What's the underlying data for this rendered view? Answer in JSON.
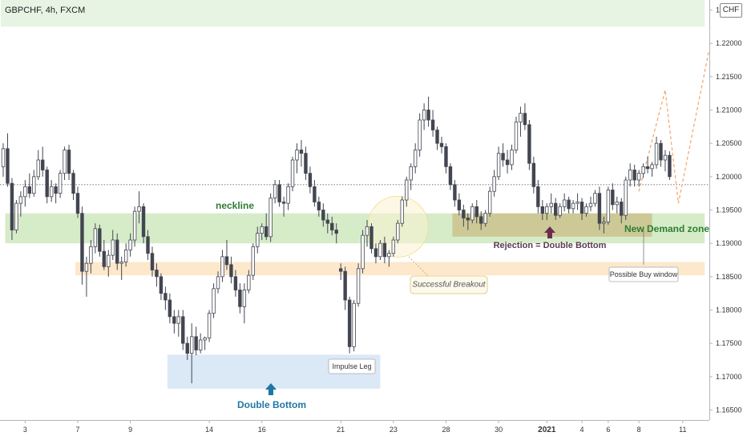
{
  "header": {
    "symbol": "GBPCHF, 4h, FXCM",
    "currency_button": "CHF"
  },
  "colors": {
    "up_candle": "#ffffff",
    "down_candle": "#434651",
    "wick": "#434651",
    "neckline_zone": "#d6ecc9",
    "top_zone": "#e7f3e3",
    "support_zone": "#fde8cc",
    "demand_zone": "#cbc38e",
    "double_bottom_zone": "#dbe8f6",
    "arrow_blue": "#1f77a6",
    "arrow_purple": "#6b2d4e",
    "neckline_text": "#2e7d32",
    "demand_text": "#2e7d32"
  },
  "chart_data": {
    "type": "candlestick",
    "ylim": [
      1.1635,
      1.2265
    ],
    "y_ticks": [
      "1.16500",
      "1.17000",
      "1.17500",
      "1.18000",
      "1.18500",
      "1.19000",
      "1.19500",
      "1.20000",
      "1.20500",
      "1.21000",
      "1.21500",
      "1.22000",
      "1.22500"
    ],
    "x_ticks": [
      {
        "label": "3",
        "bar": 5
      },
      {
        "label": "7",
        "bar": 17
      },
      {
        "label": "9",
        "bar": 29
      },
      {
        "label": "14",
        "bar": 47
      },
      {
        "label": "16",
        "bar": 59
      },
      {
        "label": "21",
        "bar": 77
      },
      {
        "label": "23",
        "bar": 89
      },
      {
        "label": "28",
        "bar": 101
      },
      {
        "label": "30",
        "bar": 113
      },
      {
        "label": "2021",
        "bar": 124
      },
      {
        "label": "4",
        "bar": 132
      },
      {
        "label": "6",
        "bar": 138
      },
      {
        "label": "8",
        "bar": 145
      },
      {
        "label": "11",
        "bar": 155
      }
    ],
    "reference_level": 1.1988,
    "zones": [
      {
        "name": "top-zone",
        "y": [
          1.2225,
          1.2265
        ],
        "bars": [
          0,
          160
        ]
      },
      {
        "name": "neckline-zone",
        "y": [
          1.19,
          1.1945
        ],
        "bars": [
          1,
          160
        ]
      },
      {
        "name": "support-zone",
        "y": [
          1.1852,
          1.1872
        ],
        "bars": [
          17,
          160
        ]
      },
      {
        "name": "demand-zone",
        "y": [
          1.191,
          1.1945
        ],
        "bars": [
          103,
          148
        ]
      },
      {
        "name": "double-bottom-zone",
        "y": [
          1.1682,
          1.1733
        ],
        "bars": [
          38,
          86
        ]
      }
    ],
    "candles": [
      [
        1.2015,
        1.205,
        1.2,
        1.2042
      ],
      [
        1.2042,
        1.2065,
        1.1985,
        1.199
      ],
      [
        1.199,
        1.1998,
        1.1905,
        1.192
      ],
      [
        1.192,
        1.1965,
        1.1915,
        1.196
      ],
      [
        1.196,
        1.1978,
        1.194,
        1.197
      ],
      [
        1.197,
        1.1995,
        1.1955,
        1.1985
      ],
      [
        1.1985,
        1.2005,
        1.1968,
        1.1975
      ],
      [
        1.1975,
        1.201,
        1.197,
        1.2
      ],
      [
        1.2,
        1.204,
        1.1995,
        1.2025
      ],
      [
        1.2025,
        1.2045,
        1.2,
        1.201
      ],
      [
        1.201,
        1.2015,
        1.196,
        1.197
      ],
      [
        1.197,
        1.1995,
        1.1962,
        1.1985
      ],
      [
        1.1985,
        1.199,
        1.196,
        1.1975
      ],
      [
        1.1975,
        1.201,
        1.1968,
        1.2005
      ],
      [
        1.2005,
        1.2045,
        1.1995,
        1.204
      ],
      [
        1.204,
        1.2048,
        1.1995,
        1.2005
      ],
      [
        1.2005,
        1.201,
        1.1965,
        1.1975
      ],
      [
        1.1975,
        1.1985,
        1.1938,
        1.1945
      ],
      [
        1.1945,
        1.1955,
        1.1838,
        1.1858
      ],
      [
        1.1858,
        1.188,
        1.182,
        1.187
      ],
      [
        1.187,
        1.1905,
        1.1855,
        1.1895
      ],
      [
        1.1895,
        1.193,
        1.1885,
        1.1922
      ],
      [
        1.1922,
        1.1928,
        1.188,
        1.1888
      ],
      [
        1.1888,
        1.1905,
        1.186,
        1.1865
      ],
      [
        1.1865,
        1.189,
        1.185,
        1.1882
      ],
      [
        1.1882,
        1.192,
        1.1875,
        1.1905
      ],
      [
        1.1905,
        1.1915,
        1.186,
        1.187
      ],
      [
        1.187,
        1.188,
        1.1845,
        1.1872
      ],
      [
        1.1872,
        1.19,
        1.1865,
        1.189
      ],
      [
        1.189,
        1.1915,
        1.188,
        1.1905
      ],
      [
        1.1905,
        1.1955,
        1.1895,
        1.1948
      ],
      [
        1.1948,
        1.1978,
        1.193,
        1.1955
      ],
      [
        1.1955,
        1.196,
        1.19,
        1.191
      ],
      [
        1.191,
        1.192,
        1.1875,
        1.1885
      ],
      [
        1.1885,
        1.1895,
        1.185,
        1.186
      ],
      [
        1.186,
        1.187,
        1.1835,
        1.185
      ],
      [
        1.185,
        1.1855,
        1.1815,
        1.1825
      ],
      [
        1.1825,
        1.1835,
        1.18,
        1.1815
      ],
      [
        1.1815,
        1.1825,
        1.178,
        1.179
      ],
      [
        1.179,
        1.18,
        1.1765,
        1.178
      ],
      [
        1.178,
        1.18,
        1.176,
        1.179
      ],
      [
        1.179,
        1.18,
        1.174,
        1.175
      ],
      [
        1.175,
        1.176,
        1.1725,
        1.1735
      ],
      [
        1.1735,
        1.178,
        1.169,
        1.176
      ],
      [
        1.176,
        1.1775,
        1.1732,
        1.174
      ],
      [
        1.174,
        1.1765,
        1.1735,
        1.1755
      ],
      [
        1.1755,
        1.176,
        1.174,
        1.1758
      ],
      [
        1.1758,
        1.18,
        1.1752,
        1.1795
      ],
      [
        1.1795,
        1.184,
        1.1788,
        1.1832
      ],
      [
        1.1832,
        1.1858,
        1.1825,
        1.185
      ],
      [
        1.185,
        1.189,
        1.1842,
        1.188
      ],
      [
        1.188,
        1.1905,
        1.186,
        1.1868
      ],
      [
        1.1868,
        1.188,
        1.184,
        1.185
      ],
      [
        1.185,
        1.186,
        1.182,
        1.183
      ],
      [
        1.183,
        1.184,
        1.1795,
        1.1805
      ],
      [
        1.1805,
        1.184,
        1.178,
        1.183
      ],
      [
        1.183,
        1.186,
        1.1825,
        1.1852
      ],
      [
        1.1852,
        1.19,
        1.1845,
        1.1895
      ],
      [
        1.1895,
        1.1925,
        1.1885,
        1.1915
      ],
      [
        1.1915,
        1.193,
        1.1905,
        1.1925
      ],
      [
        1.1925,
        1.1945,
        1.1905,
        1.191
      ],
      [
        1.191,
        1.1975,
        1.1902,
        1.1968
      ],
      [
        1.1968,
        1.1995,
        1.196,
        1.1988
      ],
      [
        1.1988,
        1.1995,
        1.1955,
        1.1962
      ],
      [
        1.1962,
        1.197,
        1.194,
        1.196
      ],
      [
        1.196,
        1.199,
        1.195,
        1.1985
      ],
      [
        1.1985,
        1.203,
        1.1978,
        1.2025
      ],
      [
        1.2025,
        1.205,
        1.2005,
        1.204
      ],
      [
        1.204,
        1.2055,
        1.2015,
        1.2035
      ],
      [
        1.2035,
        1.2045,
        1.1995,
        1.2005
      ],
      [
        1.2005,
        1.2015,
        1.1975,
        1.1985
      ],
      [
        1.1985,
        1.1995,
        1.1955,
        1.1962
      ],
      [
        1.1962,
        1.197,
        1.194,
        1.195
      ],
      [
        1.195,
        1.196,
        1.1925,
        1.1935
      ],
      [
        1.1935,
        1.1945,
        1.1915,
        1.193
      ],
      [
        1.193,
        1.194,
        1.1912,
        1.192
      ],
      [
        1.192,
        1.193,
        1.19,
        1.1915
      ],
      [
        1.1862,
        1.187,
        1.1845,
        1.1858
      ],
      [
        1.1858,
        1.1865,
        1.18,
        1.1815
      ],
      [
        1.1815,
        1.182,
        1.1735,
        1.1745
      ],
      [
        1.1745,
        1.1815,
        1.1738,
        1.181
      ],
      [
        1.181,
        1.187,
        1.1805,
        1.1862
      ],
      [
        1.1862,
        1.192,
        1.1855,
        1.1912
      ],
      [
        1.1912,
        1.1935,
        1.1895,
        1.1925
      ],
      [
        1.1925,
        1.193,
        1.1885,
        1.1892
      ],
      [
        1.1892,
        1.19,
        1.187,
        1.188
      ],
      [
        1.188,
        1.1905,
        1.1875,
        1.19
      ],
      [
        1.19,
        1.191,
        1.187,
        1.188
      ],
      [
        1.188,
        1.189,
        1.1865,
        1.1885
      ],
      [
        1.1885,
        1.191,
        1.188,
        1.1905
      ],
      [
        1.1905,
        1.1935,
        1.19,
        1.193
      ],
      [
        1.193,
        1.197,
        1.1925,
        1.1965
      ],
      [
        1.1965,
        1.2,
        1.1955,
        1.1995
      ],
      [
        1.1995,
        1.202,
        1.198,
        1.2015
      ],
      [
        1.2015,
        1.205,
        1.2005,
        1.204
      ],
      [
        1.204,
        1.2095,
        1.203,
        1.2085
      ],
      [
        1.2085,
        1.211,
        1.207,
        1.21
      ],
      [
        1.21,
        1.212,
        1.2075,
        1.2085
      ],
      [
        1.2085,
        1.21,
        1.206,
        1.207
      ],
      [
        1.207,
        1.2075,
        1.204,
        1.205
      ],
      [
        1.205,
        1.206,
        1.2035,
        1.2045
      ],
      [
        1.2045,
        1.205,
        1.2005,
        1.2015
      ],
      [
        1.2015,
        1.202,
        1.198,
        1.1988
      ],
      [
        1.1988,
        1.1995,
        1.1955,
        1.1965
      ],
      [
        1.1965,
        1.1975,
        1.1942,
        1.195
      ],
      [
        1.195,
        1.1958,
        1.1925,
        1.1938
      ],
      [
        1.1938,
        1.1945,
        1.192,
        1.1935
      ],
      [
        1.1935,
        1.196,
        1.193,
        1.1955
      ],
      [
        1.1955,
        1.1965,
        1.193,
        1.194
      ],
      [
        1.194,
        1.1948,
        1.192,
        1.193
      ],
      [
        1.193,
        1.195,
        1.1925,
        1.1945
      ],
      [
        1.1945,
        1.1985,
        1.194,
        1.1978
      ],
      [
        1.1978,
        1.201,
        1.197,
        1.2
      ],
      [
        1.2,
        1.2045,
        1.1995,
        1.2035
      ],
      [
        1.2035,
        1.205,
        1.2015,
        1.2025
      ],
      [
        1.2025,
        1.204,
        1.2005,
        1.2018
      ],
      [
        1.2018,
        1.2048,
        1.201,
        1.204
      ],
      [
        1.204,
        1.209,
        1.2035,
        1.2082
      ],
      [
        1.2082,
        1.2105,
        1.206,
        1.2095
      ],
      [
        1.2095,
        1.211,
        1.207,
        1.2078
      ],
      [
        1.2078,
        1.2085,
        1.201,
        1.202
      ],
      [
        1.202,
        1.203,
        1.1975,
        1.1985
      ],
      [
        1.1985,
        1.1995,
        1.1945,
        1.1955
      ],
      [
        1.1955,
        1.1965,
        1.1935,
        1.1945
      ],
      [
        1.1945,
        1.196,
        1.1935,
        1.1955
      ],
      [
        1.1955,
        1.1975,
        1.1945,
        1.196
      ],
      [
        1.196,
        1.1968,
        1.1935,
        1.1942
      ],
      [
        1.1942,
        1.196,
        1.1938,
        1.1955
      ],
      [
        1.1955,
        1.1975,
        1.1948,
        1.1965
      ],
      [
        1.1965,
        1.197,
        1.1945,
        1.1952
      ],
      [
        1.1952,
        1.1965,
        1.1945,
        1.196
      ],
      [
        1.196,
        1.1975,
        1.195,
        1.1962
      ],
      [
        1.1962,
        1.1968,
        1.1935,
        1.1945
      ],
      [
        1.1945,
        1.196,
        1.194,
        1.1955
      ],
      [
        1.1955,
        1.197,
        1.1948,
        1.196
      ],
      [
        1.196,
        1.198,
        1.1955,
        1.1975
      ],
      [
        1.1975,
        1.1985,
        1.192,
        1.193
      ],
      [
        1.193,
        1.194,
        1.1915,
        1.1932
      ],
      [
        1.1932,
        1.1985,
        1.1928,
        1.198
      ],
      [
        1.198,
        1.199,
        1.195,
        1.1958
      ],
      [
        1.1958,
        1.197,
        1.1945,
        1.1962
      ],
      [
        1.1962,
        1.1968,
        1.193,
        1.1942
      ],
      [
        1.1942,
        1.2,
        1.1935,
        1.1995
      ],
      [
        1.1995,
        1.202,
        1.1985,
        1.201
      ],
      [
        1.201,
        1.2018,
        1.1985,
        1.1995
      ],
      [
        1.1995,
        1.201,
        1.1985,
        1.2005
      ],
      [
        1.2005,
        1.202,
        1.1998,
        1.2015
      ],
      [
        1.2015,
        1.203,
        1.2005,
        1.2012
      ],
      [
        1.2012,
        1.2022,
        1.2,
        1.2018
      ],
      [
        1.2018,
        1.206,
        1.2012,
        1.205
      ],
      [
        1.205,
        1.2055,
        1.2015,
        1.2025
      ],
      [
        1.2025,
        1.204,
        1.2008,
        1.2032
      ],
      [
        1.2032,
        1.2038,
        1.1995,
        1.2
      ]
    ],
    "projection": {
      "bars": [
        145,
        151,
        154,
        161
      ],
      "prices": [
        1.1978,
        1.213,
        1.196,
        1.219
      ]
    },
    "breakout_circle": {
      "bar": 90,
      "price": 1.1925
    },
    "annotations": [
      {
        "key": "neckline",
        "text": "neckline",
        "bar": 56,
        "price": 1.1968
      },
      {
        "key": "new_demand_zone",
        "text": "New Demand zone",
        "bar": 162,
        "price": 1.1918
      },
      {
        "key": "rejection",
        "text": "Rejection = Double Bottom",
        "bar": 125,
        "price": 1.19
      },
      {
        "key": "successful_breakout",
        "text": "Successful Breakout",
        "bar": 100,
        "price": 1.1838
      },
      {
        "key": "possible_buy_window",
        "text": "Possible Buy window",
        "bar": 152,
        "price": 1.1857
      },
      {
        "key": "impulse_leg",
        "text": "Impulse Leg",
        "bar": 79,
        "price": 1.1722
      },
      {
        "key": "double_bottom",
        "text": "Double Bottom",
        "bar": 60,
        "price": 1.167
      }
    ]
  }
}
